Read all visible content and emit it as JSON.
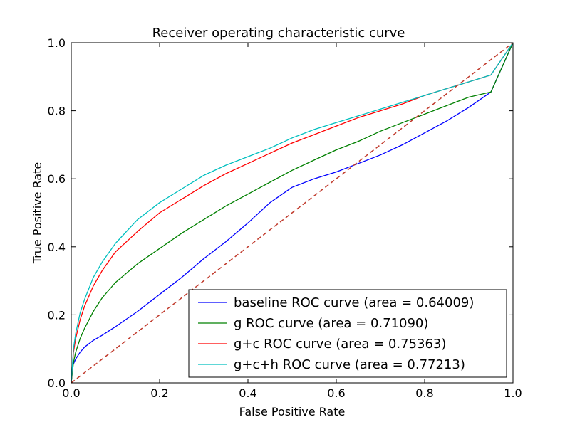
{
  "chart_data": {
    "type": "line",
    "title": "Receiver operating characteristic curve",
    "xlabel": "False Positive Rate",
    "ylabel": "True Positive Rate",
    "xlim": [
      0.0,
      1.0
    ],
    "ylim": [
      0.0,
      1.0
    ],
    "xticks": [
      "0.0",
      "0.2",
      "0.4",
      "0.6",
      "0.8",
      "1.0"
    ],
    "yticks": [
      "0.0",
      "0.2",
      "0.4",
      "0.6",
      "0.8",
      "1.0"
    ],
    "grid": false,
    "legend_position": "lower-right",
    "series": [
      {
        "name": "baseline ROC curve (area = 0.64009)",
        "color": "#0000ff",
        "x": [
          0.0,
          0.003,
          0.01,
          0.02,
          0.03,
          0.05,
          0.07,
          0.1,
          0.15,
          0.2,
          0.25,
          0.3,
          0.35,
          0.4,
          0.45,
          0.5,
          0.55,
          0.6,
          0.65,
          0.7,
          0.75,
          0.8,
          0.85,
          0.9,
          0.95,
          1.0
        ],
        "y": [
          0.0,
          0.05,
          0.07,
          0.09,
          0.105,
          0.125,
          0.14,
          0.165,
          0.21,
          0.26,
          0.31,
          0.365,
          0.415,
          0.47,
          0.53,
          0.575,
          0.6,
          0.62,
          0.645,
          0.67,
          0.7,
          0.735,
          0.77,
          0.81,
          0.855,
          1.0
        ]
      },
      {
        "name": "g ROC curve (area = 0.71090)",
        "color": "#008000",
        "x": [
          0.0,
          0.005,
          0.01,
          0.02,
          0.03,
          0.05,
          0.07,
          0.1,
          0.15,
          0.2,
          0.25,
          0.3,
          0.35,
          0.4,
          0.45,
          0.5,
          0.55,
          0.6,
          0.65,
          0.7,
          0.75,
          0.8,
          0.85,
          0.9,
          0.95,
          1.0
        ],
        "y": [
          0.0,
          0.06,
          0.09,
          0.13,
          0.16,
          0.21,
          0.25,
          0.295,
          0.35,
          0.395,
          0.44,
          0.48,
          0.52,
          0.555,
          0.59,
          0.625,
          0.655,
          0.685,
          0.71,
          0.74,
          0.765,
          0.79,
          0.815,
          0.84,
          0.855,
          1.0
        ]
      },
      {
        "name": "g+c ROC curve (area = 0.75363)",
        "color": "#ff0000",
        "x": [
          0.0,
          0.005,
          0.01,
          0.02,
          0.03,
          0.05,
          0.07,
          0.1,
          0.15,
          0.2,
          0.25,
          0.3,
          0.35,
          0.4,
          0.45,
          0.5,
          0.55,
          0.6,
          0.65,
          0.7,
          0.75,
          0.8,
          0.85,
          0.9,
          0.95,
          1.0
        ],
        "y": [
          0.0,
          0.09,
          0.13,
          0.185,
          0.225,
          0.285,
          0.33,
          0.385,
          0.445,
          0.5,
          0.54,
          0.58,
          0.615,
          0.645,
          0.675,
          0.705,
          0.73,
          0.755,
          0.78,
          0.8,
          0.82,
          0.845,
          0.865,
          0.885,
          0.905,
          1.0
        ]
      },
      {
        "name": "g+c+h ROC curve (area = 0.77213)",
        "color": "#00bfbf",
        "x": [
          0.0,
          0.005,
          0.01,
          0.02,
          0.03,
          0.05,
          0.07,
          0.1,
          0.15,
          0.2,
          0.25,
          0.3,
          0.35,
          0.4,
          0.45,
          0.5,
          0.55,
          0.6,
          0.65,
          0.7,
          0.75,
          0.8,
          0.85,
          0.9,
          0.95,
          1.0
        ],
        "y": [
          0.0,
          0.1,
          0.145,
          0.205,
          0.245,
          0.31,
          0.355,
          0.41,
          0.48,
          0.53,
          0.57,
          0.61,
          0.64,
          0.665,
          0.69,
          0.72,
          0.745,
          0.765,
          0.785,
          0.805,
          0.825,
          0.845,
          0.865,
          0.885,
          0.905,
          1.0
        ]
      },
      {
        "name": "",
        "color": "#c0392b",
        "style": "dashed",
        "x": [
          0.0,
          1.0
        ],
        "y": [
          0.0,
          1.0
        ]
      }
    ]
  }
}
